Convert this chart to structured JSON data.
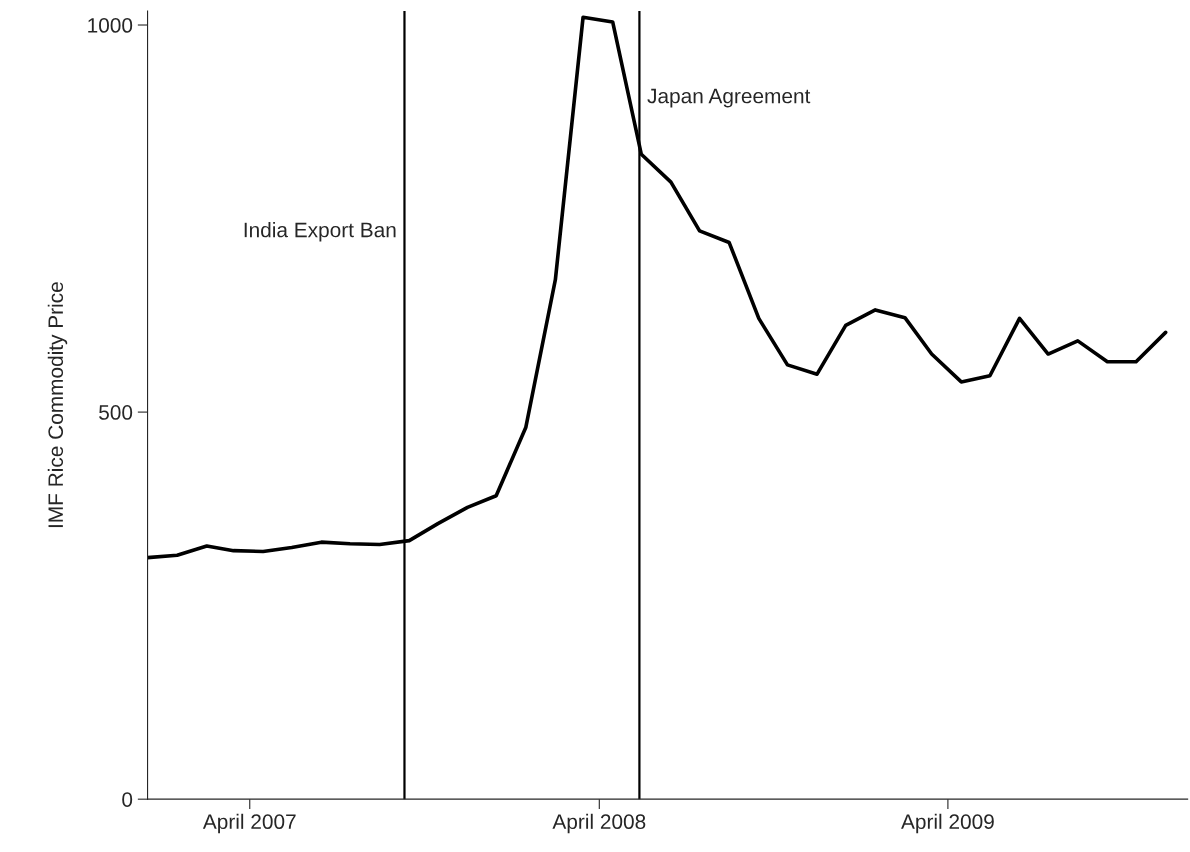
{
  "chart_data": {
    "type": "line",
    "ylabel": "IMF Rice Commodity Price",
    "x": [
      "2006-12-15",
      "2007-01-15",
      "2007-02-15",
      "2007-03-15",
      "2007-04-15",
      "2007-05-15",
      "2007-06-15",
      "2007-07-15",
      "2007-08-15",
      "2007-09-15",
      "2007-10-15",
      "2007-11-15",
      "2007-12-15",
      "2008-01-15",
      "2008-02-15",
      "2008-03-15",
      "2008-04-15",
      "2008-05-15",
      "2008-06-15",
      "2008-07-15",
      "2008-08-15",
      "2008-09-15",
      "2008-10-15",
      "2008-11-15",
      "2008-12-15",
      "2009-01-15",
      "2009-02-15",
      "2009-03-15",
      "2009-04-15",
      "2009-05-15",
      "2009-06-15",
      "2009-07-15",
      "2009-08-15",
      "2009-09-15",
      "2009-10-15",
      "2009-11-15"
    ],
    "series": [
      {
        "color": "#000000",
        "values": [
          312,
          315,
          327,
          321,
          320,
          325,
          332,
          330,
          329,
          334,
          356,
          377,
          392,
          480,
          671,
          1010,
          1004,
          833,
          797,
          734,
          719,
          621,
          561,
          549,
          612,
          632,
          622,
          575,
          539,
          547,
          621,
          575,
          592,
          565,
          565,
          603
        ]
      }
    ],
    "xlim": [
      "2006-12-15",
      "2009-12-08"
    ],
    "xticks": [
      {
        "value": "2007-04-01",
        "label": "April 2007"
      },
      {
        "value": "2008-04-01",
        "label": "April 2008"
      },
      {
        "value": "2009-04-01",
        "label": "April 2009"
      }
    ],
    "ylim": [
      0,
      1018
    ],
    "yticks": [
      0,
      500,
      1000
    ],
    "ref_lines": [
      {
        "axis": "x",
        "value": "2007-09-10",
        "label": "India Export Ban",
        "color": "#000000"
      },
      {
        "axis": "x",
        "value": "2008-05-13",
        "label": "Japan Agreement",
        "color": "#000000"
      }
    ],
    "grid": false,
    "legend": false,
    "marker": "none",
    "line_style": "solid"
  }
}
